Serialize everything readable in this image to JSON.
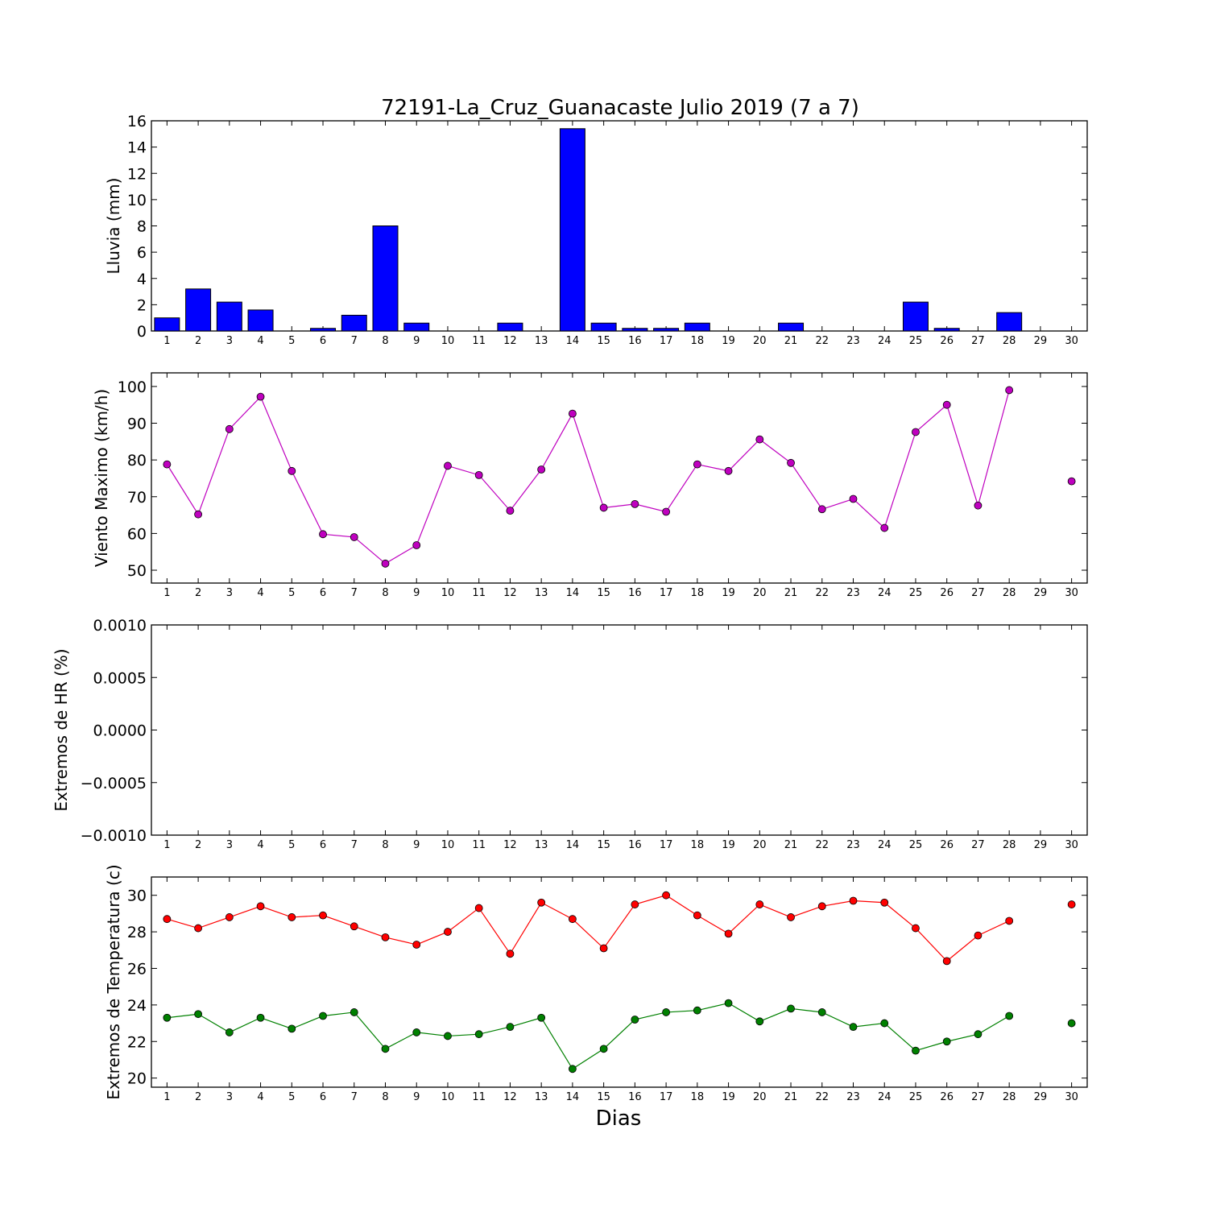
{
  "figure_title": "72191-La_Cruz_Guanacaste Julio 2019  (7 a 7)",
  "xlabel": "Dias",
  "chart_data": [
    {
      "type": "bar",
      "ylabel": "Lluvia (mm)",
      "color": "#0000ff",
      "ylim": [
        0,
        16
      ],
      "yticks": [
        0,
        2,
        4,
        6,
        8,
        10,
        12,
        14,
        16
      ],
      "ytick_labels": [
        "0",
        "2",
        "4",
        "6",
        "8",
        "10",
        "12",
        "14",
        "16"
      ],
      "x": [
        1,
        2,
        3,
        4,
        5,
        6,
        7,
        8,
        9,
        10,
        11,
        12,
        13,
        14,
        15,
        16,
        17,
        18,
        19,
        20,
        21,
        22,
        23,
        24,
        25,
        26,
        27,
        28,
        29,
        30
      ],
      "values": [
        1.0,
        3.2,
        2.2,
        1.6,
        0,
        0.2,
        1.2,
        8.0,
        0.6,
        0,
        0,
        0.6,
        0,
        15.4,
        0.6,
        0.2,
        0.2,
        0.6,
        0,
        0,
        0.6,
        0,
        0,
        0,
        2.2,
        0.2,
        0,
        1.4,
        0,
        0
      ]
    },
    {
      "type": "line",
      "ylabel": "Viento Maximo (km/h)",
      "color": "#bf00bf",
      "ylim": [
        46.5,
        103.7
      ],
      "yticks": [
        50,
        60,
        70,
        80,
        90,
        100
      ],
      "ytick_labels": [
        "50",
        "60",
        "70",
        "80",
        "90",
        "100"
      ],
      "x": [
        1,
        2,
        3,
        4,
        5,
        6,
        7,
        8,
        9,
        10,
        11,
        12,
        13,
        14,
        15,
        16,
        17,
        18,
        19,
        20,
        21,
        22,
        23,
        24,
        25,
        26,
        27,
        28,
        29,
        30
      ],
      "series": [
        {
          "values": [
            78.8,
            65.2,
            88.4,
            97.2,
            77.0,
            59.8,
            59.0,
            51.8,
            56.8,
            78.4,
            75.9,
            66.2,
            77.4,
            92.6,
            67.0,
            68.0,
            65.9,
            78.8,
            77.0,
            85.6,
            79.2,
            66.6,
            69.4,
            61.5,
            87.6,
            95.0,
            67.6,
            99.0,
            null,
            74.2
          ]
        }
      ]
    },
    {
      "type": "line",
      "ylabel": "Extremos de HR (%)",
      "ylim": [
        -0.001,
        0.001
      ],
      "yticks": [
        -0.001,
        -0.0005,
        0,
        0.0005,
        0.001
      ],
      "ytick_labels": [
        "−0.0010",
        "−0.0005",
        "0.0000",
        "0.0005",
        "0.0010"
      ],
      "x": [
        1,
        2,
        3,
        4,
        5,
        6,
        7,
        8,
        9,
        10,
        11,
        12,
        13,
        14,
        15,
        16,
        17,
        18,
        19,
        20,
        21,
        22,
        23,
        24,
        25,
        26,
        27,
        28,
        29,
        30
      ],
      "series": []
    },
    {
      "type": "line",
      "ylabel": "Extremos de Temperatura (c)",
      "ylim": [
        19.5,
        31.0
      ],
      "yticks": [
        20,
        22,
        24,
        26,
        28,
        30
      ],
      "ytick_labels": [
        "20",
        "22",
        "24",
        "26",
        "28",
        "30"
      ],
      "x": [
        1,
        2,
        3,
        4,
        5,
        6,
        7,
        8,
        9,
        10,
        11,
        12,
        13,
        14,
        15,
        16,
        17,
        18,
        19,
        20,
        21,
        22,
        23,
        24,
        25,
        26,
        27,
        28,
        29,
        30
      ],
      "series": [
        {
          "color": "#ff0000",
          "values": [
            28.7,
            28.2,
            28.8,
            29.4,
            28.8,
            28.9,
            28.3,
            27.7,
            27.3,
            28.0,
            29.3,
            26.8,
            29.6,
            28.7,
            27.1,
            29.5,
            30.0,
            28.9,
            27.9,
            29.5,
            28.8,
            29.4,
            29.7,
            29.6,
            28.2,
            26.4,
            27.8,
            28.6,
            null,
            29.5
          ]
        },
        {
          "color": "#008000",
          "values": [
            23.3,
            23.5,
            22.5,
            23.3,
            22.7,
            23.4,
            23.6,
            21.6,
            22.5,
            22.3,
            22.4,
            22.8,
            23.3,
            20.5,
            21.6,
            23.2,
            23.6,
            23.7,
            24.1,
            23.1,
            23.8,
            23.6,
            22.8,
            23.0,
            21.5,
            22.0,
            22.4,
            23.4,
            null,
            23.0
          ]
        }
      ]
    }
  ]
}
